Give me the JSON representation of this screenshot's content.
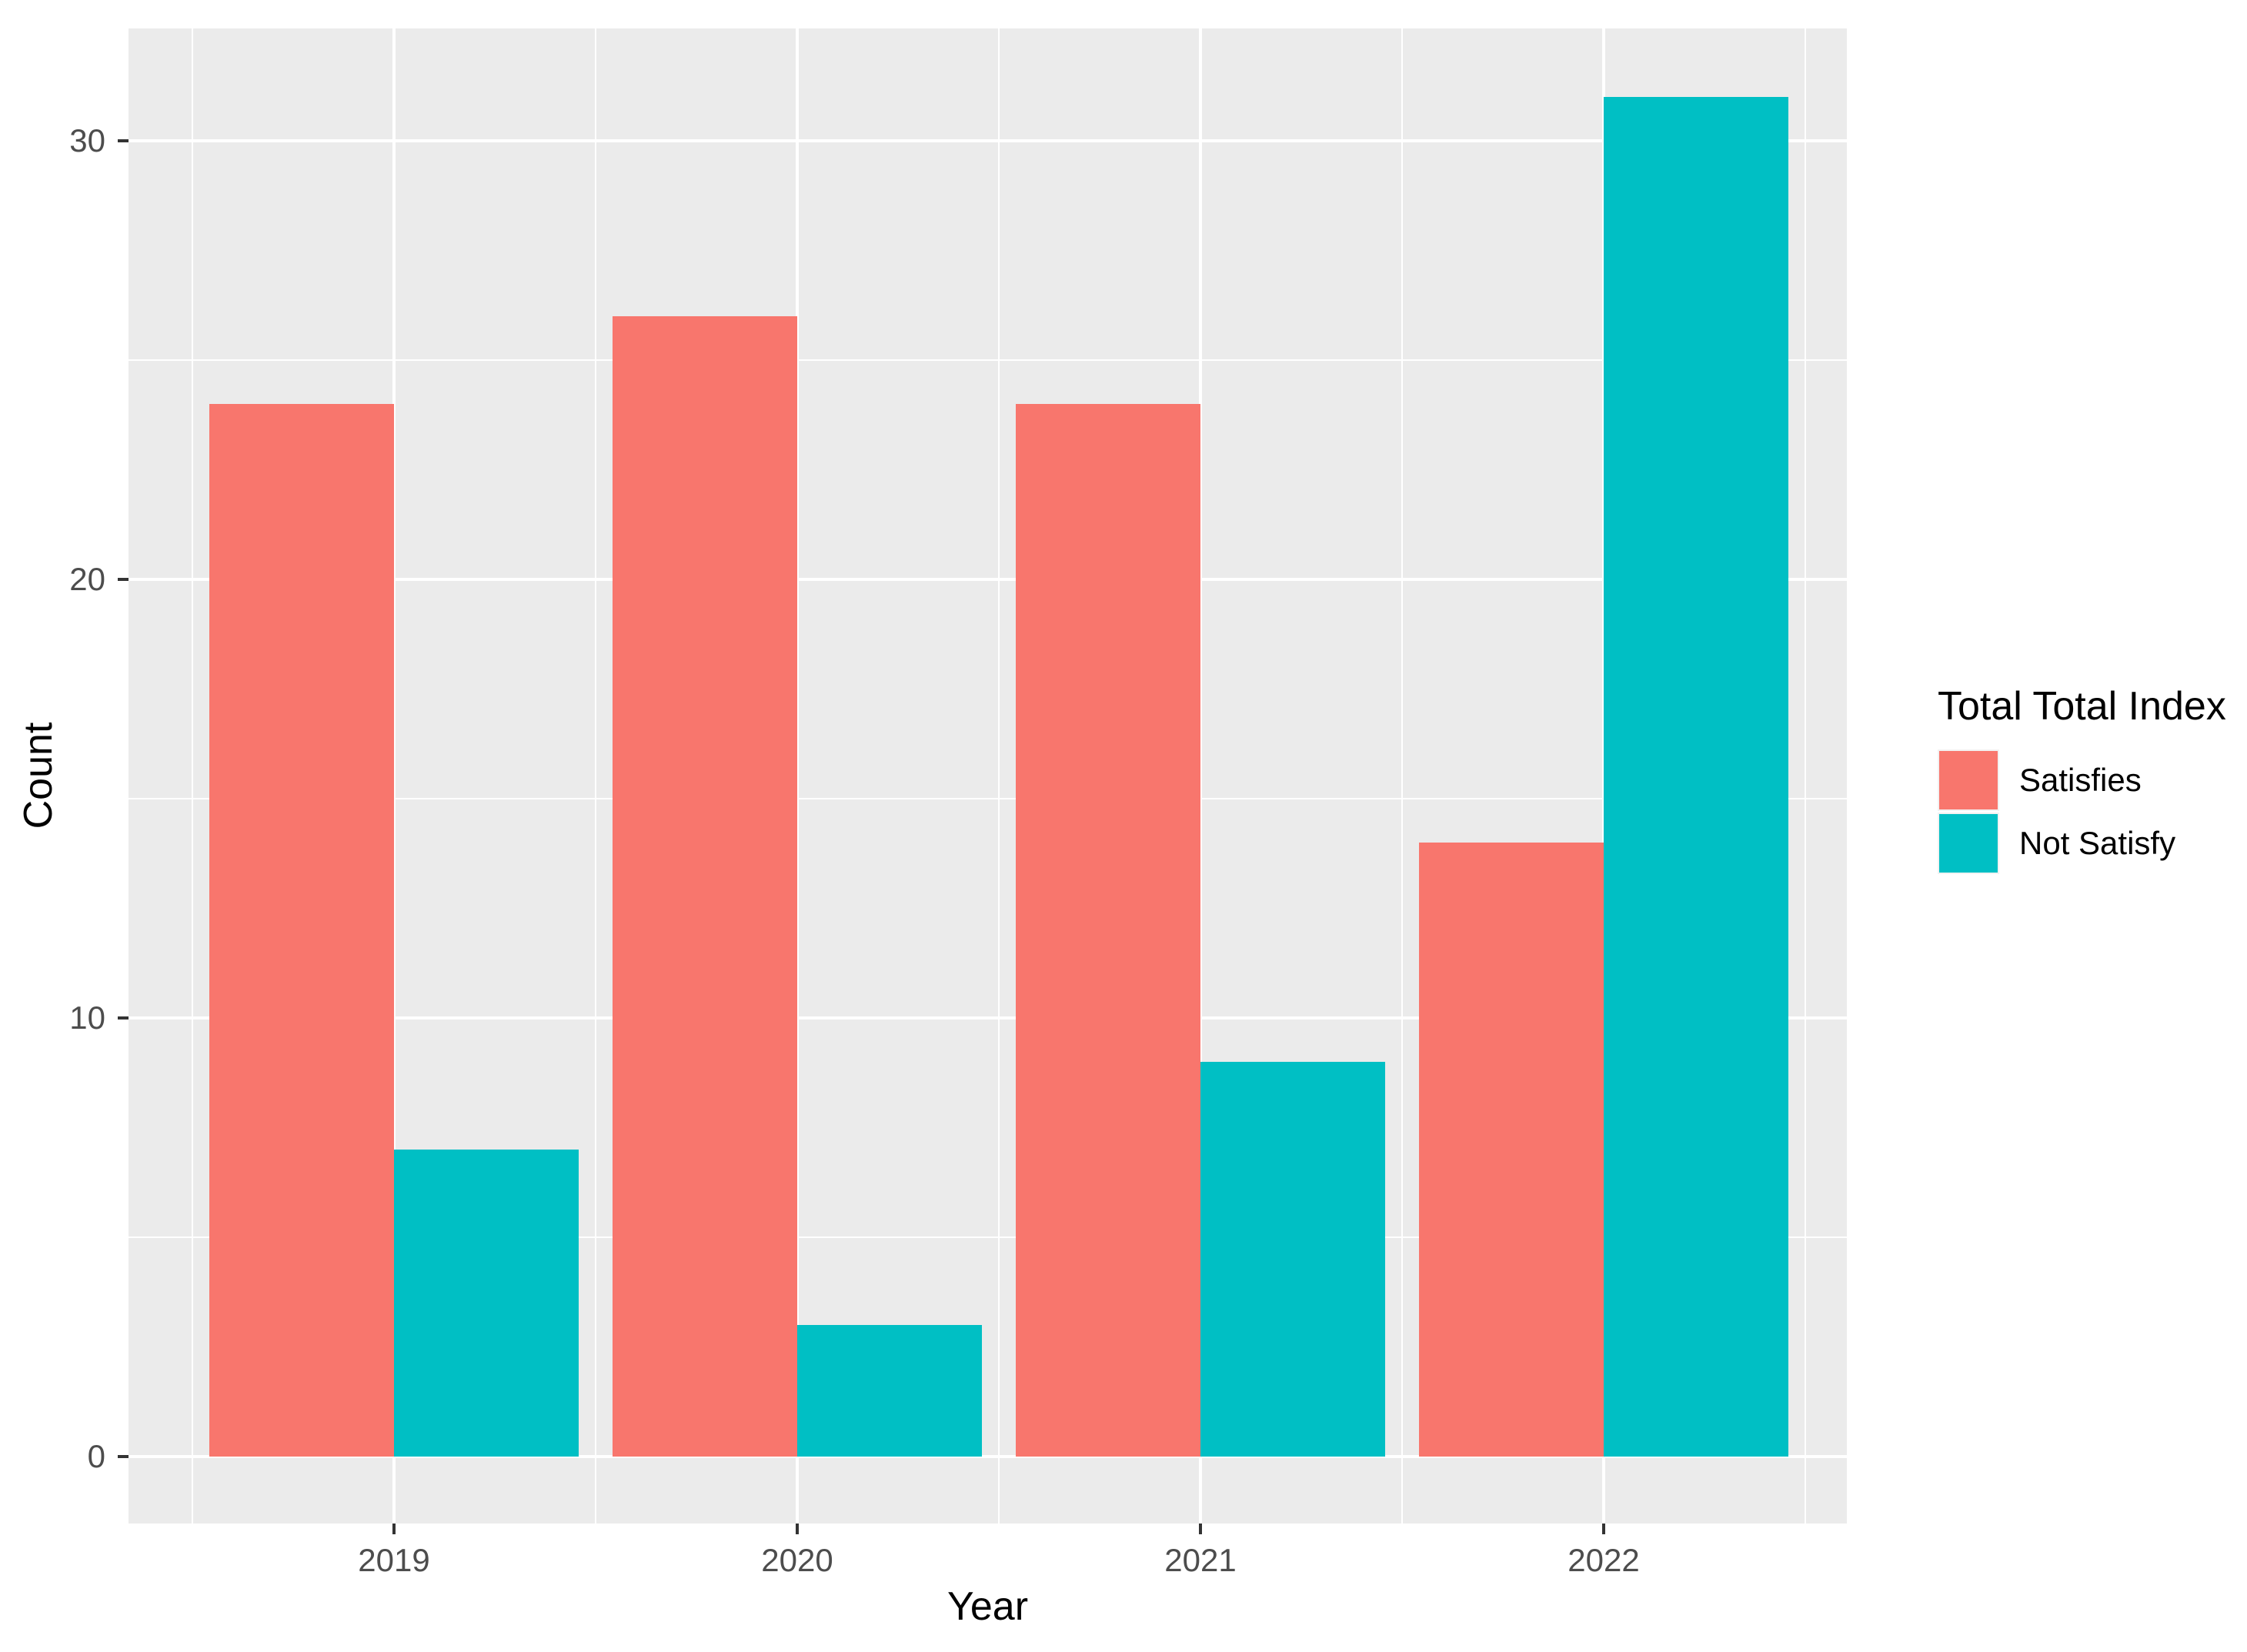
{
  "figure": {
    "background_color": "#FFFFFF",
    "panel_background_color": "#EBEBEB",
    "grid_color": "#FFFFFF",
    "tick_mark_color": "#333333",
    "tick_label_color": "#4D4D4D",
    "title_text_color": "#000000"
  },
  "chart_data": {
    "type": "bar",
    "title": "",
    "xlabel": "Year",
    "ylabel": "Count",
    "categories": [
      "2019",
      "2020",
      "2021",
      "2022"
    ],
    "series": [
      {
        "name": "Satisfies",
        "color": "#F8766D",
        "values": [
          24,
          26,
          24,
          14
        ]
      },
      {
        "name": "Not Satisfy",
        "color": "#00BFC4",
        "values": [
          7,
          3,
          9,
          31
        ]
      }
    ],
    "ylim": [
      0,
      31
    ],
    "yticks": [
      0,
      10,
      20,
      30
    ],
    "yticks_minor": [
      5,
      15,
      25
    ],
    "grid": "on",
    "bar_layout": "dodged",
    "legend_title": "Total Total Index",
    "legend_position": "right"
  },
  "axes": {
    "x": {
      "title": "Year",
      "tick_labels": [
        "2019",
        "2020",
        "2021",
        "2022"
      ]
    },
    "y": {
      "title": "Count",
      "tick_labels": [
        "0",
        "10",
        "20",
        "30"
      ]
    }
  },
  "legend": {
    "title": "Total Total Index",
    "items": [
      {
        "label": "Satisfies",
        "color": "#F8766D"
      },
      {
        "label": "Not Satisfy",
        "color": "#00BFC4"
      }
    ]
  }
}
